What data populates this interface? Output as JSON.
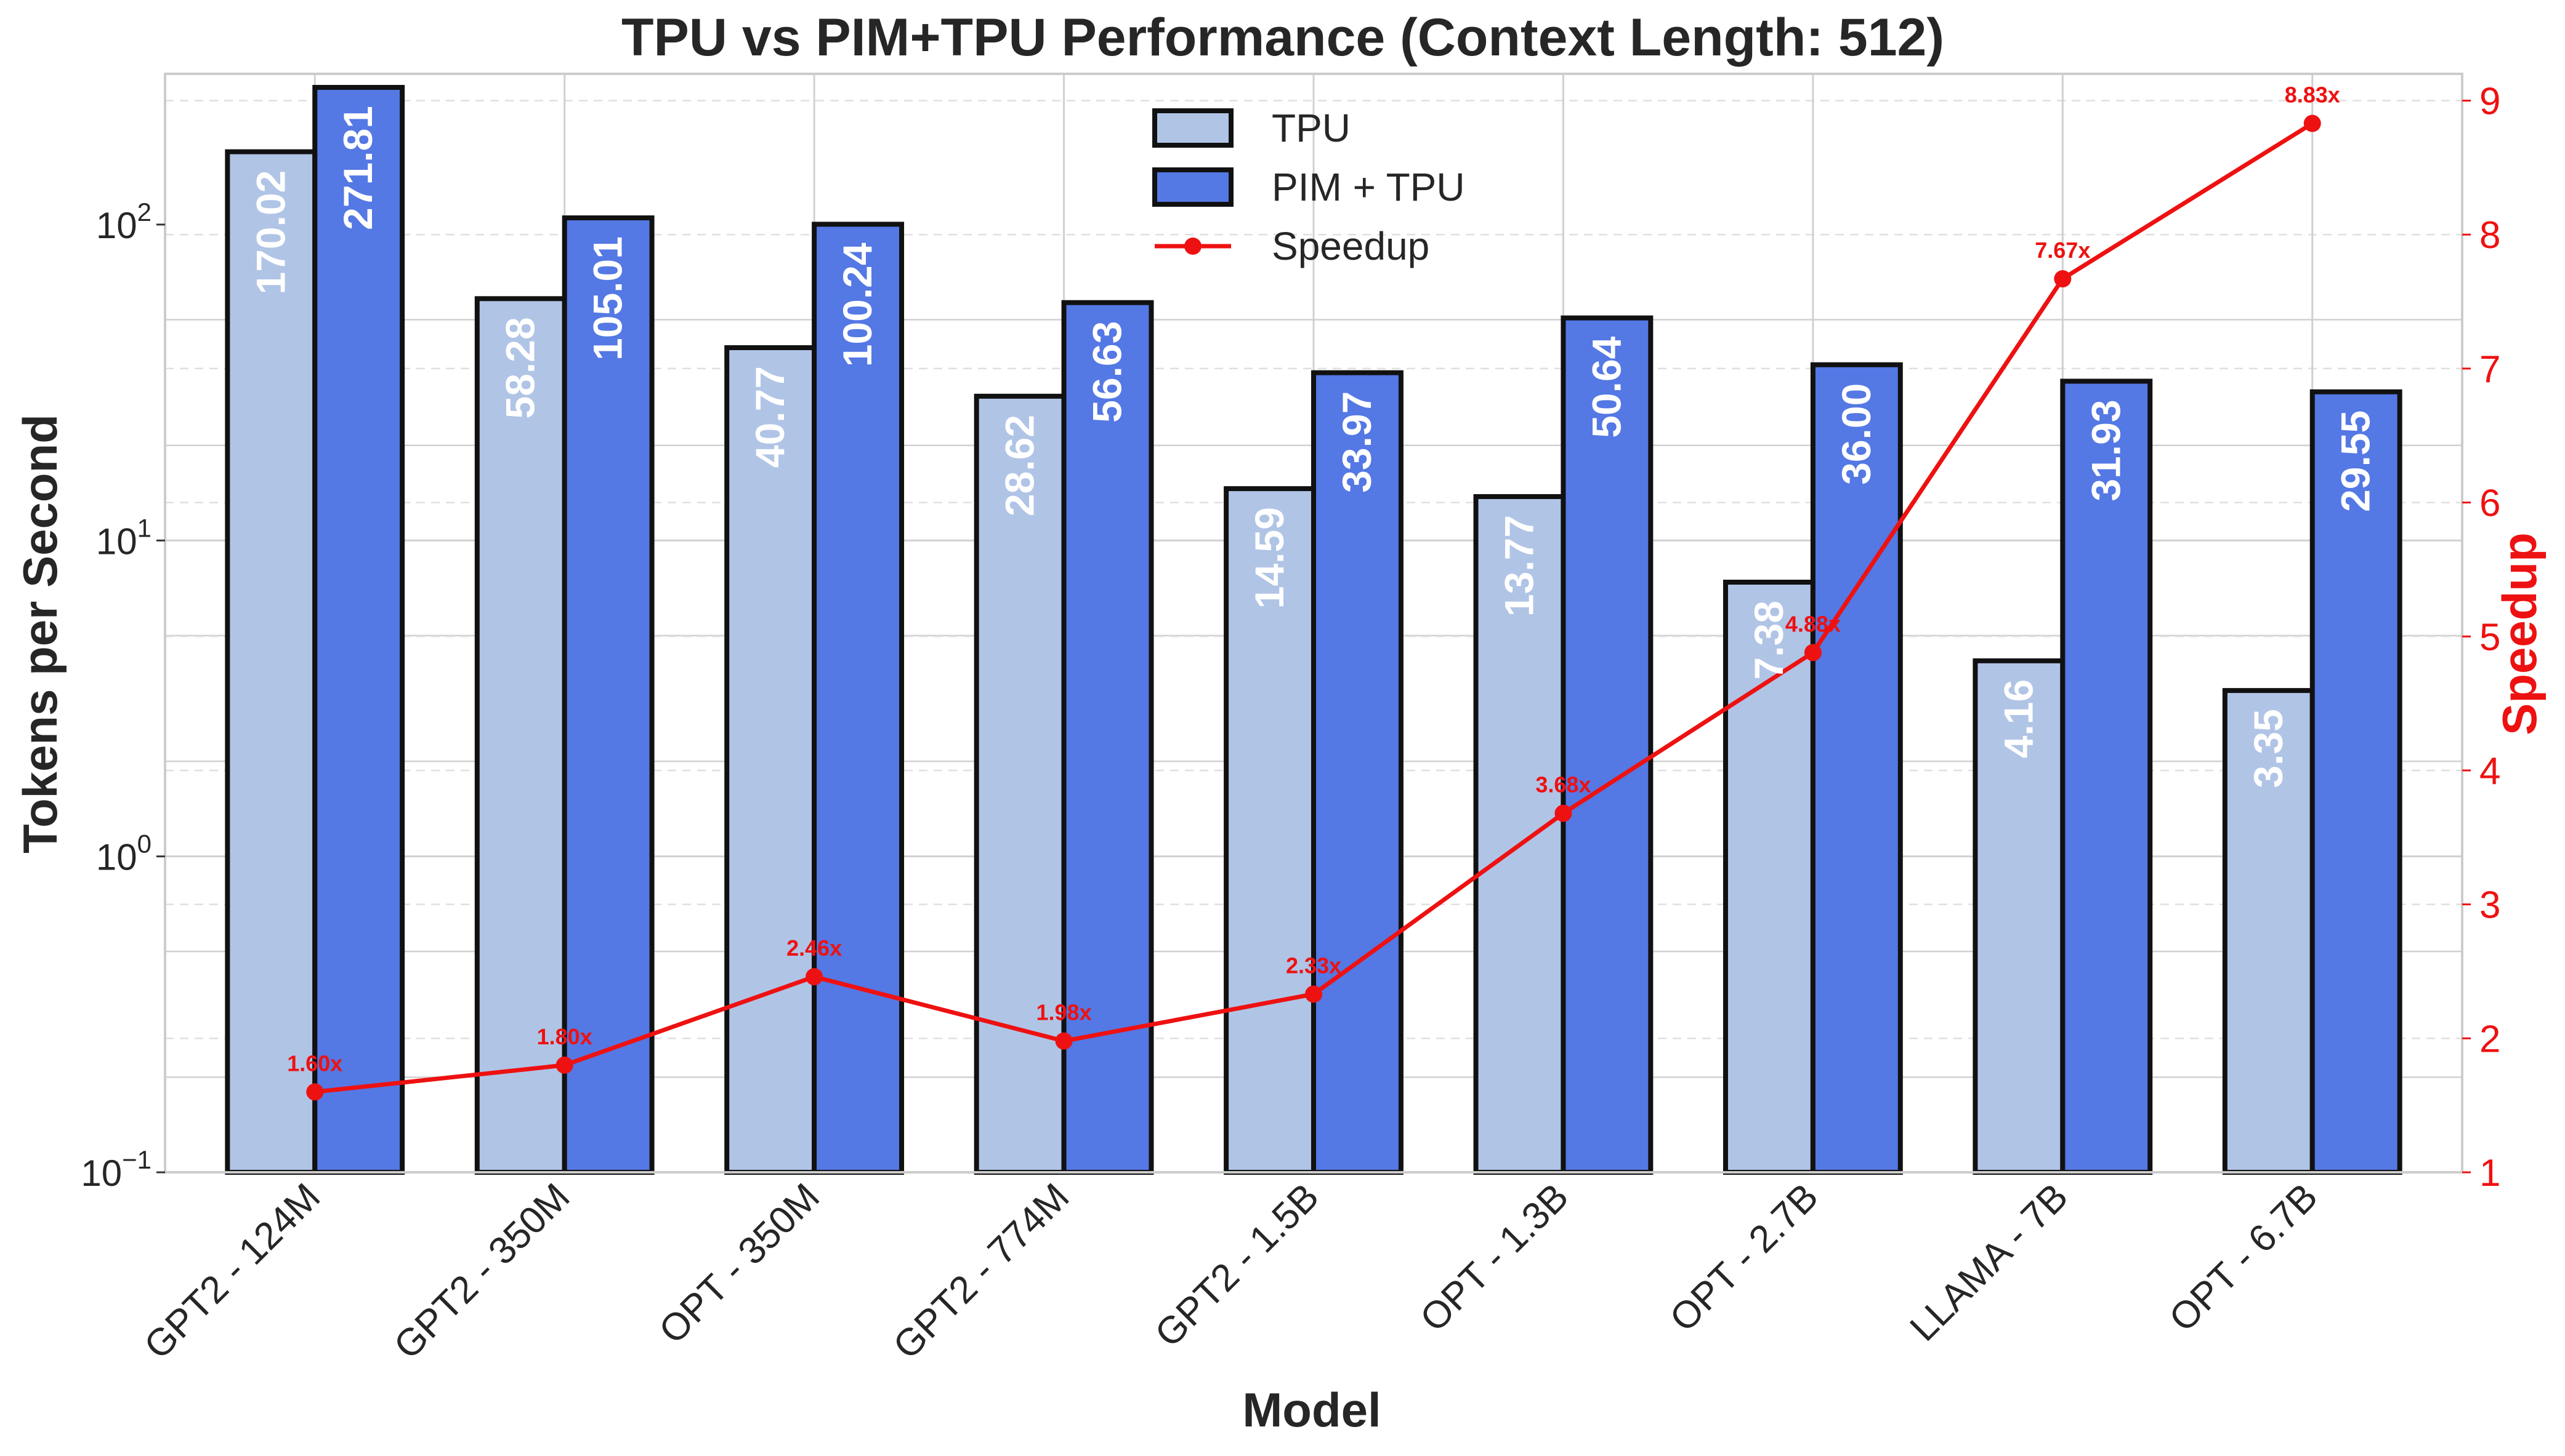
{
  "chart_data": {
    "type": "bar",
    "title": "TPU vs PIM+TPU Performance (Context Length: 512)",
    "xlabel": "Model",
    "ylabel": "Tokens per Second",
    "y2label": "Speedup",
    "yscale": "log",
    "ylim": [
      0.1,
      300
    ],
    "y2lim": [
      1,
      9.2
    ],
    "grid": true,
    "legend_position": "top-center",
    "categories": [
      "GPT2 - 124M",
      "GPT2 - 350M",
      "OPT - 350M",
      "GPT2 - 774M",
      "GPT2 - 1.5B",
      "OPT - 1.3B",
      "OPT - 2.7B",
      "LLAMA - 7B",
      "OPT - 6.7B"
    ],
    "series": [
      {
        "name": "TPU",
        "values": [
          170.02,
          58.28,
          40.77,
          28.62,
          14.59,
          13.77,
          7.38,
          4.16,
          3.35
        ],
        "labels": [
          "170.02",
          "58.28",
          "40.77",
          "28.62",
          "14.59",
          "13.77",
          "7.38",
          "4.16",
          "3.35"
        ],
        "color": "#b0c4e6"
      },
      {
        "name": "PIM + TPU",
        "values": [
          271.81,
          105.01,
          100.24,
          56.63,
          33.97,
          50.64,
          36.0,
          31.93,
          29.55
        ],
        "labels": [
          "271.81",
          "105.01",
          "100.24",
          "56.63",
          "33.97",
          "50.64",
          "36.00",
          "31.93",
          "29.55"
        ],
        "color": "#5478e4"
      }
    ],
    "speedup": {
      "name": "Speedup",
      "values": [
        1.6,
        1.8,
        2.46,
        1.98,
        2.33,
        3.68,
        4.88,
        7.67,
        8.83
      ],
      "labels": [
        "1.60x",
        "1.80x",
        "2.46x",
        "1.98x",
        "2.33x",
        "3.68x",
        "4.88x",
        "7.67x",
        "8.83x"
      ],
      "color": "#ee1111"
    },
    "y_ticks": [
      {
        "value": 0.1,
        "base": "10",
        "exp": "−1"
      },
      {
        "value": 1,
        "base": "10",
        "exp": "0"
      },
      {
        "value": 10,
        "base": "10",
        "exp": "1"
      },
      {
        "value": 100,
        "base": "10",
        "exp": "2"
      }
    ],
    "y2_ticks": [
      "1",
      "2",
      "3",
      "4",
      "5",
      "6",
      "7",
      "8",
      "9"
    ]
  }
}
